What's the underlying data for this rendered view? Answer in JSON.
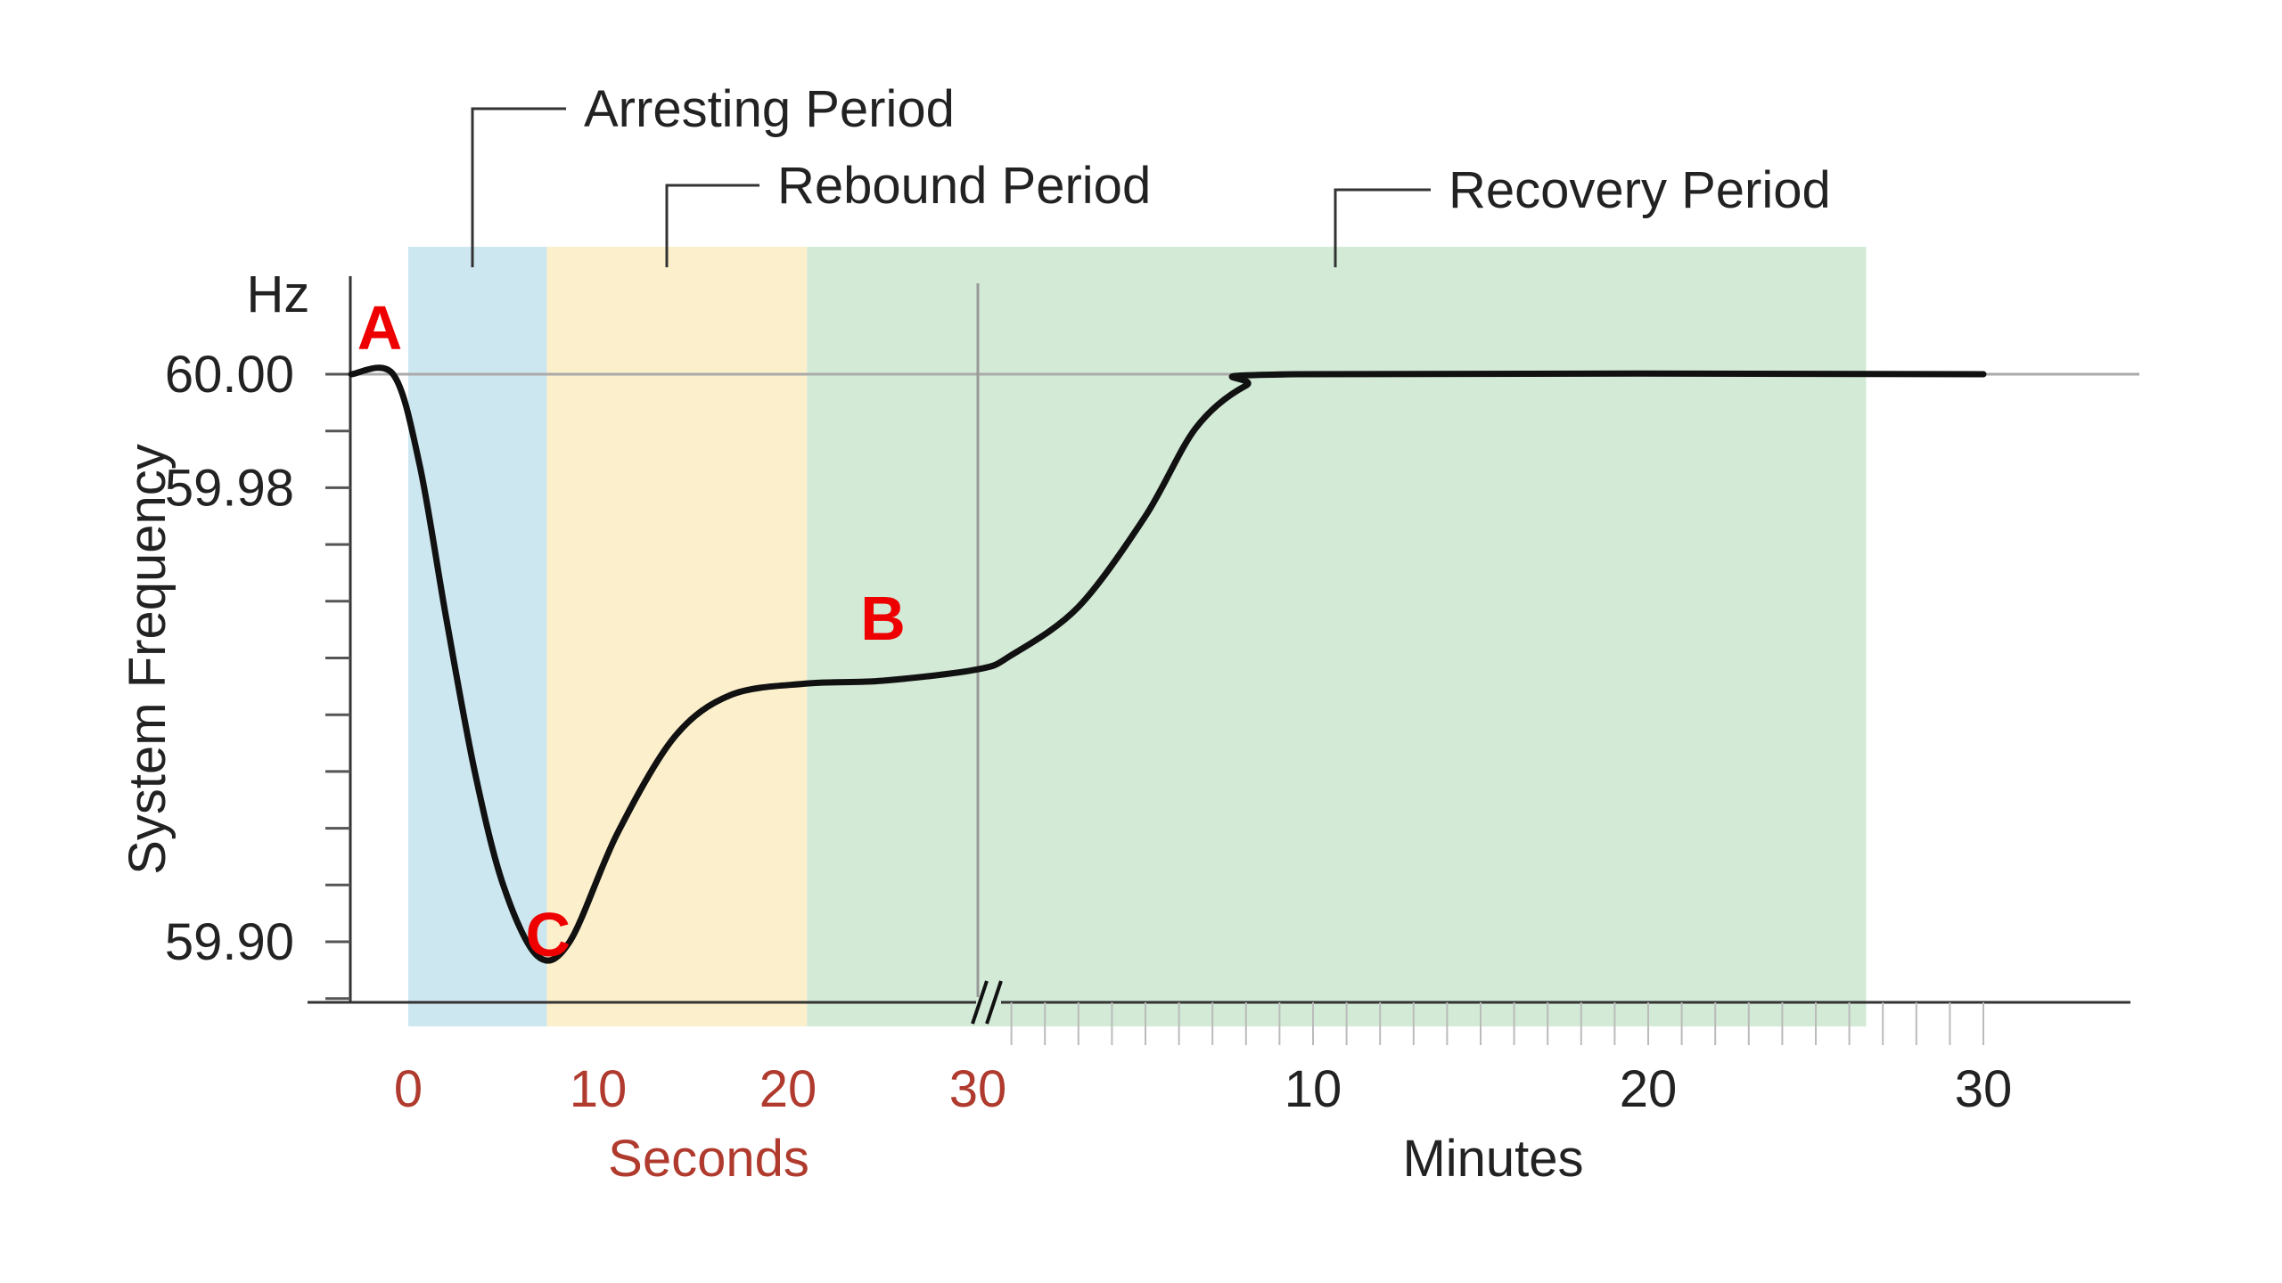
{
  "chart_data": {
    "type": "line",
    "ylabel": "System Frequency",
    "yunit": "Hz",
    "y_tick_labels": [
      "60.00",
      "59.98",
      "59.90"
    ],
    "ylim": [
      59.89,
      60.01
    ],
    "seconds_axis": {
      "label": "Seconds",
      "tick_labels": [
        "0",
        "10",
        "20",
        "30"
      ],
      "range": [
        -3,
        30
      ]
    },
    "minutes_axis": {
      "label": "Minutes",
      "tick_labels": [
        "10",
        "20",
        "30"
      ],
      "range": [
        0,
        30
      ]
    },
    "periods": [
      {
        "name": "Arresting Period",
        "axis": "seconds",
        "start": 0,
        "end": 7.3,
        "color": "#cde7f0"
      },
      {
        "name": "Rebound Period",
        "axis": "seconds",
        "start": 7.3,
        "end": 21,
        "color": "#fcefcb"
      },
      {
        "name": "Recovery Period",
        "axis_start": "seconds",
        "start": 21,
        "axis_end": "minutes",
        "end": 26.5,
        "color": "#d2ead6"
      }
    ],
    "series": [
      {
        "points": [
          {
            "axis": "seconds",
            "x": -3,
            "y": 60.0
          },
          {
            "axis": "seconds",
            "x": -0.8,
            "y": 60.0
          },
          {
            "axis": "seconds",
            "x": 0.6,
            "y": 59.984
          },
          {
            "axis": "seconds",
            "x": 2,
            "y": 59.957
          },
          {
            "axis": "seconds",
            "x": 3.5,
            "y": 59.93
          },
          {
            "axis": "seconds",
            "x": 5,
            "y": 59.91
          },
          {
            "axis": "seconds",
            "x": 6.8,
            "y": 59.8975
          },
          {
            "axis": "seconds",
            "x": 8.5,
            "y": 59.9
          },
          {
            "axis": "seconds",
            "x": 11,
            "y": 59.919
          },
          {
            "axis": "seconds",
            "x": 14,
            "y": 59.936
          },
          {
            "axis": "seconds",
            "x": 17,
            "y": 59.9435
          },
          {
            "axis": "seconds",
            "x": 21,
            "y": 59.9455
          },
          {
            "axis": "seconds",
            "x": 25,
            "y": 59.946
          },
          {
            "axis": "seconds",
            "x": 30,
            "y": 59.948
          },
          {
            "axis": "minutes",
            "x": 1,
            "y": 59.9505
          },
          {
            "axis": "minutes",
            "x": 3,
            "y": 59.959
          },
          {
            "axis": "minutes",
            "x": 5,
            "y": 59.975
          },
          {
            "axis": "minutes",
            "x": 6.5,
            "y": 59.9905
          },
          {
            "axis": "minutes",
            "x": 8,
            "y": 59.998
          },
          {
            "axis": "minutes",
            "x": 9.5,
            "y": 60.0
          },
          {
            "axis": "minutes",
            "x": 30,
            "y": 60.0
          }
        ]
      }
    ],
    "reference_line": {
      "y": 60.0
    },
    "annotations": [
      {
        "text": "A",
        "axis": "seconds",
        "x": -1.5,
        "y": 60.0,
        "color": "#ee0000"
      },
      {
        "text": "C",
        "axis": "seconds",
        "x": 6.8,
        "y": 59.8975,
        "color": "#ee0000"
      },
      {
        "text": "B",
        "axis": "seconds",
        "x": 25,
        "y": 59.946,
        "color": "#ee0000"
      }
    ],
    "grid": false,
    "line_color": "#111111"
  }
}
